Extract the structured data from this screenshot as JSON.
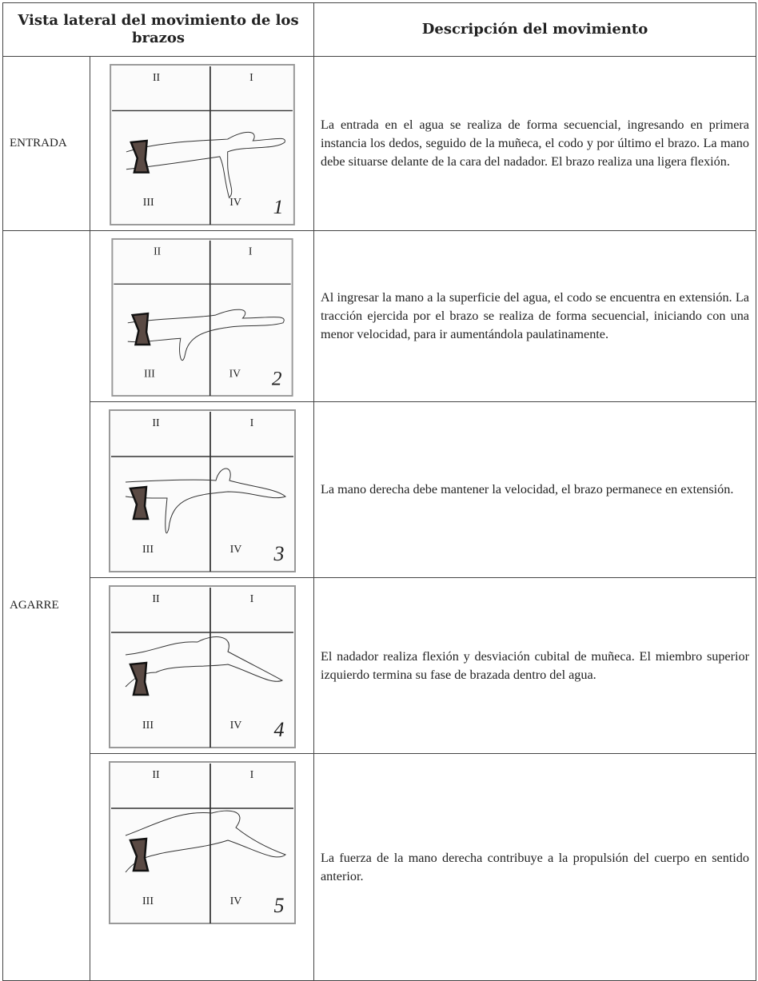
{
  "header": {
    "col1": "Vista lateral del movimiento de los brazos",
    "col2": "Descripción del movimiento"
  },
  "table": {
    "rows": [
      {
        "phase": "ENTRADA",
        "figure": {
          "quadrants": [
            "II",
            "I",
            "III",
            "IV"
          ],
          "number": "1"
        },
        "description": "La entrada en el agua se realiza de forma secuencial, ingresando en primera instancia los dedos, seguido de la muñeca, el codo y por último el brazo. La mano debe situarse delante de la cara del nadador. El brazo realiza una ligera flexión."
      },
      {
        "phase": "AGARRE",
        "figure": {
          "quadrants": [
            "II",
            "I",
            "III",
            "IV"
          ],
          "number": "2"
        },
        "description": "Al ingresar la mano a la superficie del agua, el codo se encuentra en extensión. La tracción ejercida por el brazo se realiza de forma secuencial, iniciando con una menor velocidad, para ir aumentándola paulatinamente."
      },
      {
        "figure": {
          "quadrants": [
            "II",
            "I",
            "III",
            "IV"
          ],
          "number": "3"
        },
        "description": "La mano derecha debe mantener la velocidad, el brazo permanece en extensión."
      },
      {
        "figure": {
          "quadrants": [
            "II",
            "I",
            "III",
            "IV"
          ],
          "number": "4"
        },
        "description": "El nadador realiza flexión y desviación cubital de muñeca. El miembro superior izquierdo termina su fase de brazada dentro del agua."
      },
      {
        "figure": {
          "quadrants": [
            "II",
            "I",
            "III",
            "IV"
          ],
          "number": "5"
        },
        "description": "La fuerza de la mano derecha contribuye a la propulsión del cuerpo en sentido anterior."
      }
    ]
  }
}
